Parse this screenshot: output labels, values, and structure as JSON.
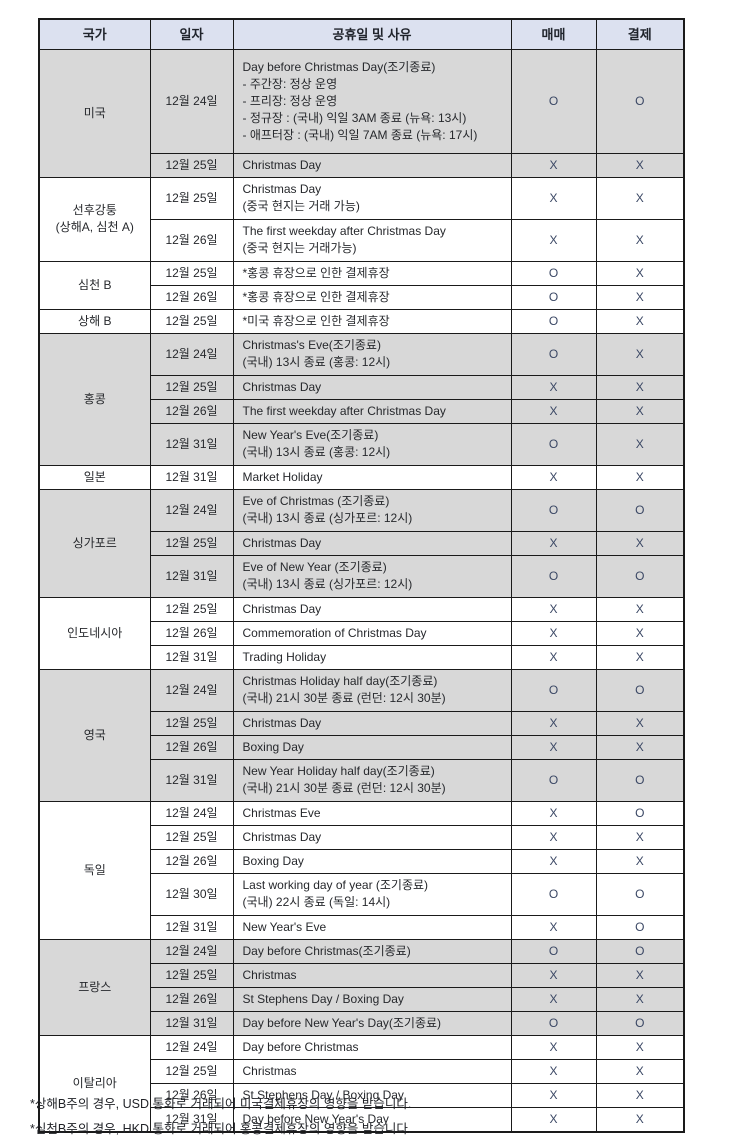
{
  "colors": {
    "header_bg": "#dce1f0",
    "shaded_row_bg": "#d8d8d8",
    "plain_row_bg": "#ffffff",
    "border": "#1a1a1a",
    "text": "#26282c",
    "mark_text": "#3a4764"
  },
  "table": {
    "headers": {
      "country": "국가",
      "date": "일자",
      "reason": "공휴일 및 사유",
      "trade": "매매",
      "settle": "결제"
    },
    "groups": [
      {
        "country": "미국",
        "shaded": true,
        "rows": [
          {
            "date": "12월 24일",
            "reason": "Day before Christmas Day(조기종료)\n- 주간장: 정상 운영\n- 프리장: 정상 운영\n- 정규장 : (국내) 익일 3AM 종료 (뉴욕: 13시)\n- 애프터장 : (국내) 익일 7AM 종료 (뉴욕: 17시)",
            "trade": "O",
            "settle": "O"
          },
          {
            "date": "12월 25일",
            "reason": "Christmas Day",
            "trade": "X",
            "settle": "X"
          }
        ]
      },
      {
        "country": "선후강퉁\n(상해A, 심천 A)",
        "shaded": false,
        "rows": [
          {
            "date": "12월 25일",
            "reason": "Christmas Day\n(중국 현지는 거래 가능)",
            "trade": "X",
            "settle": "X"
          },
          {
            "date": "12월 26일",
            "reason": "The first weekday after Christmas Day\n(중국 현지는 거래가능)",
            "trade": "X",
            "settle": "X"
          }
        ]
      },
      {
        "country": "심천 B",
        "shaded": false,
        "rows": [
          {
            "date": "12월 25일",
            "reason": "*홍콩 휴장으로 인한 결제휴장",
            "trade": "O",
            "settle": "X"
          },
          {
            "date": "12월 26일",
            "reason": "*홍콩 휴장으로 인한 결제휴장",
            "trade": "O",
            "settle": "X"
          }
        ]
      },
      {
        "country": "상해 B",
        "shaded": false,
        "rows": [
          {
            "date": "12월 25일",
            "reason": "*미국 휴장으로 인한 결제휴장",
            "trade": "O",
            "settle": "X"
          }
        ]
      },
      {
        "country": "홍콩",
        "shaded": true,
        "rows": [
          {
            "date": "12월 24일",
            "reason": "Christmas's Eve(조기종료)\n(국내) 13시 종료 (홍콩: 12시)",
            "trade": "O",
            "settle": "X"
          },
          {
            "date": "12월 25일",
            "reason": "Christmas Day",
            "trade": "X",
            "settle": "X"
          },
          {
            "date": "12월 26일",
            "reason": "The first weekday after Christmas Day",
            "trade": "X",
            "settle": "X"
          },
          {
            "date": "12월 31일",
            "reason": "New Year's Eve(조기종료)\n(국내) 13시 종료 (홍콩: 12시)",
            "trade": "O",
            "settle": "X"
          }
        ]
      },
      {
        "country": "일본",
        "shaded": false,
        "rows": [
          {
            "date": "12월 31일",
            "reason": "Market Holiday",
            "trade": "X",
            "settle": "X"
          }
        ]
      },
      {
        "country": "싱가포르",
        "shaded": true,
        "rows": [
          {
            "date": "12월 24일",
            "reason": "Eve of Christmas (조기종료)\n(국내) 13시 종료 (싱가포르: 12시)",
            "trade": "O",
            "settle": "O"
          },
          {
            "date": "12월 25일",
            "reason": "Christmas Day",
            "trade": "X",
            "settle": "X"
          },
          {
            "date": "12월 31일",
            "reason": "Eve of New Year (조기종료)\n(국내) 13시 종료 (싱가포르: 12시)",
            "trade": "O",
            "settle": "O"
          }
        ]
      },
      {
        "country": "인도네시아",
        "shaded": false,
        "rows": [
          {
            "date": "12월 25일",
            "reason": "Christmas Day",
            "trade": "X",
            "settle": "X"
          },
          {
            "date": "12월 26일",
            "reason": "Commemoration of Christmas Day",
            "trade": "X",
            "settle": "X"
          },
          {
            "date": "12월 31일",
            "reason": "Trading Holiday",
            "trade": "X",
            "settle": "X"
          }
        ]
      },
      {
        "country": "영국",
        "shaded": true,
        "rows": [
          {
            "date": "12월 24일",
            "reason": "Christmas Holiday half day(조기종료)\n(국내) 21시 30분 종료 (런던: 12시 30분)",
            "trade": "O",
            "settle": "O"
          },
          {
            "date": "12월 25일",
            "reason": "Christmas Day",
            "trade": "X",
            "settle": "X"
          },
          {
            "date": "12월 26일",
            "reason": "Boxing Day",
            "trade": "X",
            "settle": "X"
          },
          {
            "date": "12월 31일",
            "reason": "New Year Holiday half day(조기종료)\n(국내) 21시 30분 종료 (런던: 12시 30분)",
            "trade": "O",
            "settle": "O"
          }
        ]
      },
      {
        "country": "독일",
        "shaded": false,
        "rows": [
          {
            "date": "12월 24일",
            "reason": "Christmas Eve",
            "trade": "X",
            "settle": "O"
          },
          {
            "date": "12월 25일",
            "reason": "Christmas Day",
            "trade": "X",
            "settle": "X"
          },
          {
            "date": "12월 26일",
            "reason": "Boxing Day",
            "trade": "X",
            "settle": "X"
          },
          {
            "date": "12월 30일",
            "reason": "Last working day of year (조기종료)\n(국내) 22시 종료 (독일: 14시)",
            "trade": "O",
            "settle": "O"
          },
          {
            "date": "12월 31일",
            "reason": "New Year's Eve",
            "trade": "X",
            "settle": "O"
          }
        ]
      },
      {
        "country": "프랑스",
        "shaded": true,
        "rows": [
          {
            "date": "12월 24일",
            "reason": "Day before Christmas(조기종료)",
            "trade": "O",
            "settle": "O"
          },
          {
            "date": "12월 25일",
            "reason": "Christmas",
            "trade": "X",
            "settle": "X"
          },
          {
            "date": "12월 26일",
            "reason": "St Stephens Day / Boxing Day",
            "trade": "X",
            "settle": "X"
          },
          {
            "date": "12월 31일",
            "reason": "Day before New Year's Day(조기종료)",
            "trade": "O",
            "settle": "O"
          }
        ]
      },
      {
        "country": "이탈리아",
        "shaded": false,
        "rows": [
          {
            "date": "12월 24일",
            "reason": "Day before Christmas",
            "trade": "X",
            "settle": "X"
          },
          {
            "date": "12월 25일",
            "reason": "Christmas",
            "trade": "X",
            "settle": "X"
          },
          {
            "date": "12월 26일",
            "reason": "St Stephens Day / Boxing Day",
            "trade": "X",
            "settle": "X"
          },
          {
            "date": "12월 31일",
            "reason": "Day before New Year's Day",
            "trade": "X",
            "settle": "X"
          }
        ]
      }
    ]
  },
  "footnotes": [
    "*상해B주의 경우, USD 통화로 거래되어 미국결제휴장의 영향을 받습니다.",
    "*심천B주의 경우, HKD 통화로 거래되어 홍콩결제휴장의 영향을 받습니다."
  ]
}
